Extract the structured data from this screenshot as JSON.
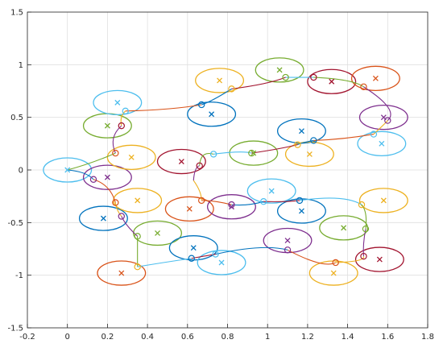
{
  "chart_data": {
    "type": "scatter",
    "title": "",
    "xlabel": "",
    "ylabel": "",
    "xlim": [
      -0.2,
      1.8
    ],
    "ylim": [
      -1.5,
      1.5
    ],
    "x_ticks": [
      "-0.2",
      "0",
      "0.2",
      "0.4",
      "0.6",
      "0.8",
      "1",
      "1.2",
      "1.4",
      "1.6",
      "1.8"
    ],
    "y_ticks": [
      "-1.5",
      "-1",
      "-0.5",
      "0",
      "0.5",
      "1",
      "1.5"
    ],
    "grid": true,
    "legend": "none",
    "colors": {
      "blue": "#0072BD",
      "orange": "#D95319",
      "yellow": "#EDB120",
      "purple": "#7E2F8E",
      "green": "#77AC30",
      "cyan": "#4DBEEE",
      "red": "#A2142F"
    },
    "ellipse_radius": {
      "rx": 0.12,
      "ry": 0.115
    },
    "targets": [
      {
        "x": 0.0,
        "y": 0.0,
        "color": "cyan"
      },
      {
        "x": 0.2,
        "y": -0.07,
        "color": "purple"
      },
      {
        "x": 0.18,
        "y": -0.46,
        "color": "blue"
      },
      {
        "x": 0.2,
        "y": 0.42,
        "color": "green"
      },
      {
        "x": 0.25,
        "y": 0.64,
        "color": "cyan"
      },
      {
        "x": 0.32,
        "y": 0.12,
        "color": "yellow"
      },
      {
        "x": 0.35,
        "y": -0.29,
        "color": "yellow"
      },
      {
        "x": 0.27,
        "y": -0.98,
        "color": "orange"
      },
      {
        "x": 0.45,
        "y": -0.6,
        "color": "green"
      },
      {
        "x": 0.57,
        "y": 0.08,
        "color": "red"
      },
      {
        "x": 0.61,
        "y": -0.37,
        "color": "orange"
      },
      {
        "x": 0.63,
        "y": -0.74,
        "color": "blue"
      },
      {
        "x": 0.72,
        "y": 0.53,
        "color": "blue"
      },
      {
        "x": 0.76,
        "y": 0.85,
        "color": "yellow"
      },
      {
        "x": 0.77,
        "y": -0.88,
        "color": "cyan"
      },
      {
        "x": 0.82,
        "y": -0.35,
        "color": "purple"
      },
      {
        "x": 0.93,
        "y": 0.16,
        "color": "green"
      },
      {
        "x": 1.02,
        "y": -0.2,
        "color": "cyan"
      },
      {
        "x": 1.06,
        "y": 0.95,
        "color": "green"
      },
      {
        "x": 1.1,
        "y": -0.67,
        "color": "purple"
      },
      {
        "x": 1.17,
        "y": 0.37,
        "color": "blue"
      },
      {
        "x": 1.17,
        "y": -0.39,
        "color": "blue"
      },
      {
        "x": 1.21,
        "y": 0.15,
        "color": "yellow"
      },
      {
        "x": 1.32,
        "y": 0.84,
        "color": "red"
      },
      {
        "x": 1.33,
        "y": -0.98,
        "color": "yellow"
      },
      {
        "x": 1.38,
        "y": -0.55,
        "color": "green"
      },
      {
        "x": 1.54,
        "y": 0.87,
        "color": "orange"
      },
      {
        "x": 1.58,
        "y": 0.5,
        "color": "purple"
      },
      {
        "x": 1.57,
        "y": 0.25,
        "color": "cyan"
      },
      {
        "x": 1.58,
        "y": -0.29,
        "color": "yellow"
      },
      {
        "x": 1.56,
        "y": -0.85,
        "color": "red"
      }
    ],
    "path": [
      {
        "color": "blue",
        "points": [
          [
            0,
            0
          ],
          [
            0.08,
            -0.03
          ],
          [
            0.13,
            -0.09
          ]
        ]
      },
      {
        "color": "orange",
        "points": [
          [
            0.13,
            -0.09
          ],
          [
            0.2,
            -0.17
          ],
          [
            0.24,
            -0.31
          ]
        ]
      },
      {
        "color": "yellow",
        "points": [
          [
            0.24,
            -0.31
          ],
          [
            0.25,
            -0.38
          ],
          [
            0.27,
            -0.44
          ]
        ]
      },
      {
        "color": "purple",
        "points": [
          [
            0.27,
            -0.44
          ],
          [
            0.3,
            -0.53
          ],
          [
            0.35,
            -0.63
          ]
        ]
      },
      {
        "color": "green",
        "points": [
          [
            0.35,
            -0.63
          ],
          [
            0.35,
            -0.8
          ],
          [
            0.35,
            -0.92
          ]
        ]
      },
      {
        "color": "cyan",
        "points": [
          [
            0.35,
            -0.92
          ],
          [
            0.48,
            -0.88
          ],
          [
            0.62,
            -0.84
          ]
        ]
      },
      {
        "color": "red",
        "points": [
          [
            0.62,
            -0.84
          ],
          [
            0.68,
            -0.82
          ],
          [
            0.74,
            -0.8
          ]
        ]
      },
      {
        "color": "blue",
        "points": [
          [
            0.74,
            -0.8
          ],
          [
            0.95,
            -0.74
          ],
          [
            1.1,
            -0.76
          ]
        ]
      },
      {
        "color": "orange",
        "points": [
          [
            1.1,
            -0.76
          ],
          [
            1.25,
            -0.88
          ],
          [
            1.34,
            -0.88
          ]
        ]
      },
      {
        "color": "yellow",
        "points": [
          [
            1.34,
            -0.88
          ],
          [
            1.45,
            -0.86
          ],
          [
            1.48,
            -0.82
          ]
        ]
      },
      {
        "color": "purple",
        "points": [
          [
            1.48,
            -0.82
          ],
          [
            1.48,
            -0.7
          ],
          [
            1.49,
            -0.56
          ]
        ]
      },
      {
        "color": "green",
        "points": [
          [
            1.49,
            -0.56
          ],
          [
            1.49,
            -0.42
          ],
          [
            1.47,
            -0.33
          ]
        ]
      },
      {
        "color": "cyan",
        "points": [
          [
            1.47,
            -0.33
          ],
          [
            1.35,
            -0.27
          ],
          [
            1.16,
            -0.29
          ]
        ]
      },
      {
        "color": "red",
        "points": [
          [
            1.16,
            -0.29
          ],
          [
            1.08,
            -0.3
          ],
          [
            0.98,
            -0.3
          ]
        ]
      },
      {
        "color": "blue",
        "points": [
          [
            0.98,
            -0.3
          ],
          [
            0.9,
            -0.33
          ],
          [
            0.82,
            -0.33
          ]
        ]
      },
      {
        "color": "orange",
        "points": [
          [
            0.82,
            -0.33
          ],
          [
            0.74,
            -0.3
          ],
          [
            0.67,
            -0.29
          ]
        ]
      },
      {
        "color": "yellow",
        "points": [
          [
            0.67,
            -0.29
          ],
          [
            0.66,
            -0.2
          ],
          [
            0.63,
            -0.1
          ]
        ]
      },
      {
        "color": "purple",
        "points": [
          [
            0.63,
            -0.1
          ],
          [
            0.64,
            0
          ],
          [
            0.66,
            0.04
          ]
        ]
      },
      {
        "color": "green",
        "points": [
          [
            0.66,
            0.04
          ],
          [
            0.68,
            0.14
          ],
          [
            0.73,
            0.15
          ]
        ]
      },
      {
        "color": "cyan",
        "points": [
          [
            0.73,
            0.15
          ],
          [
            0.85,
            0.17
          ],
          [
            0.92,
            0.16
          ]
        ]
      },
      {
        "color": "red",
        "points": [
          [
            0.92,
            0.16
          ],
          [
            1.05,
            0.2
          ],
          [
            1.15,
            0.24
          ]
        ]
      },
      {
        "color": "blue",
        "points": [
          [
            1.15,
            0.24
          ],
          [
            1.18,
            0.26
          ],
          [
            1.23,
            0.28
          ]
        ]
      },
      {
        "color": "orange",
        "points": [
          [
            1.23,
            0.28
          ],
          [
            1.38,
            0.3
          ],
          [
            1.53,
            0.34
          ]
        ]
      },
      {
        "color": "yellow",
        "points": [
          [
            1.53,
            0.34
          ],
          [
            1.58,
            0.43
          ],
          [
            1.6,
            0.47
          ]
        ]
      },
      {
        "color": "purple",
        "points": [
          [
            1.6,
            0.47
          ],
          [
            1.6,
            0.6
          ],
          [
            1.48,
            0.79
          ]
        ]
      },
      {
        "color": "green",
        "points": [
          [
            1.48,
            0.79
          ],
          [
            1.39,
            0.85
          ],
          [
            1.23,
            0.88
          ]
        ]
      },
      {
        "color": "cyan",
        "points": [
          [
            1.23,
            0.88
          ],
          [
            1.15,
            0.88
          ],
          [
            1.09,
            0.88
          ]
        ]
      },
      {
        "color": "red",
        "points": [
          [
            1.09,
            0.88
          ],
          [
            0.98,
            0.82
          ],
          [
            0.82,
            0.77
          ]
        ]
      },
      {
        "color": "blue",
        "points": [
          [
            0.82,
            0.77
          ],
          [
            0.73,
            0.67
          ],
          [
            0.67,
            0.62
          ]
        ]
      },
      {
        "color": "orange",
        "points": [
          [
            0.67,
            0.62
          ],
          [
            0.5,
            0.58
          ],
          [
            0.29,
            0.56
          ]
        ]
      },
      {
        "color": "yellow",
        "points": [
          [
            0.29,
            0.56
          ],
          [
            0.27,
            0.5
          ],
          [
            0.27,
            0.42
          ]
        ]
      },
      {
        "color": "purple",
        "points": [
          [
            0.27,
            0.42
          ],
          [
            0.23,
            0.3
          ],
          [
            0.24,
            0.16
          ]
        ]
      },
      {
        "color": "green",
        "points": [
          [
            0.24,
            0.16
          ],
          [
            0.12,
            0.07
          ],
          [
            0,
            0
          ]
        ]
      }
    ],
    "waypoints": [
      {
        "x": 0.13,
        "y": -0.09,
        "color": "purple"
      },
      {
        "x": 0.24,
        "y": -0.31,
        "color": "orange"
      },
      {
        "x": 0.27,
        "y": -0.44,
        "color": "purple"
      },
      {
        "x": 0.35,
        "y": -0.63,
        "color": "green"
      },
      {
        "x": 0.35,
        "y": -0.92,
        "color": "yellow"
      },
      {
        "x": 0.62,
        "y": -0.84,
        "color": "blue"
      },
      {
        "x": 0.74,
        "y": -0.8,
        "color": "cyan"
      },
      {
        "x": 1.1,
        "y": -0.76,
        "color": "purple"
      },
      {
        "x": 1.34,
        "y": -0.88,
        "color": "orange"
      },
      {
        "x": 1.48,
        "y": -0.82,
        "color": "red"
      },
      {
        "x": 1.49,
        "y": -0.56,
        "color": "green"
      },
      {
        "x": 1.47,
        "y": -0.33,
        "color": "yellow"
      },
      {
        "x": 1.16,
        "y": -0.29,
        "color": "blue"
      },
      {
        "x": 0.98,
        "y": -0.3,
        "color": "cyan"
      },
      {
        "x": 0.82,
        "y": -0.33,
        "color": "purple"
      },
      {
        "x": 0.67,
        "y": -0.29,
        "color": "orange"
      },
      {
        "x": 0.66,
        "y": 0.04,
        "color": "red"
      },
      {
        "x": 0.73,
        "y": 0.15,
        "color": "cyan"
      },
      {
        "x": 0.92,
        "y": 0.16,
        "color": "green"
      },
      {
        "x": 1.15,
        "y": 0.24,
        "color": "yellow"
      },
      {
        "x": 1.23,
        "y": 0.28,
        "color": "blue"
      },
      {
        "x": 1.53,
        "y": 0.34,
        "color": "cyan"
      },
      {
        "x": 1.6,
        "y": 0.47,
        "color": "purple"
      },
      {
        "x": 1.48,
        "y": 0.79,
        "color": "orange"
      },
      {
        "x": 1.23,
        "y": 0.88,
        "color": "red"
      },
      {
        "x": 1.09,
        "y": 0.88,
        "color": "green"
      },
      {
        "x": 0.82,
        "y": 0.77,
        "color": "yellow"
      },
      {
        "x": 0.67,
        "y": 0.62,
        "color": "blue"
      },
      {
        "x": 0.29,
        "y": 0.56,
        "color": "cyan"
      },
      {
        "x": 0.27,
        "y": 0.42,
        "color": "red"
      },
      {
        "x": 0.24,
        "y": 0.16,
        "color": "orange"
      }
    ]
  }
}
